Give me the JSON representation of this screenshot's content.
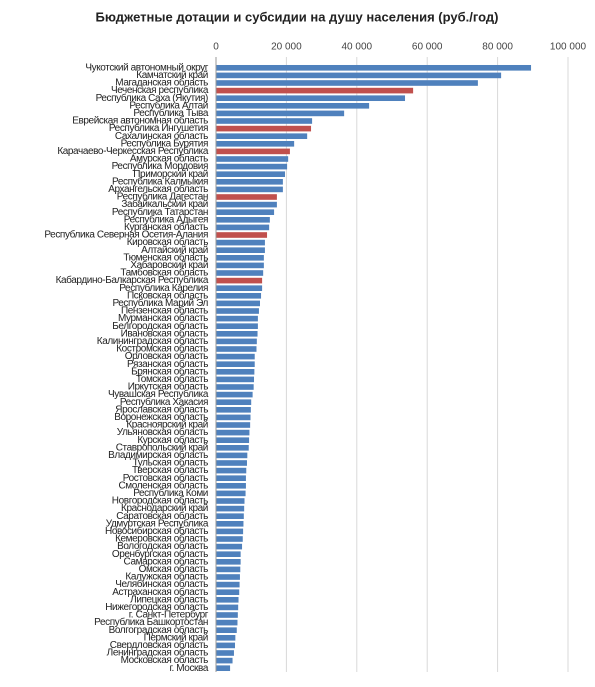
{
  "chart_data": {
    "type": "barh",
    "title": "Бюджетные дотации и субсидии на душу населения  (руб./год)",
    "categories": [
      "Чукотский автономный округ",
      "Камчатский край",
      "Магаданская область",
      "Чеченская республика",
      "Республика Саха (Якутия)",
      "Республика Алтай",
      "Республика Тыва",
      "Еврейская автономная область",
      "Республика Ингушетия",
      "Сахалинская область",
      "Республика Бурятия",
      "Карачаево-Черкесская Республика",
      "Амурская область",
      "Республика Мордовия",
      "Приморский край",
      "Республика Калмыкия",
      "Архангельская область",
      "Республика Дагестан",
      "Забайкальский край",
      "Республика Татарстан",
      "Республика Адыгея",
      "Курганская область",
      "Республика Северная Осетия-Алания",
      "Кировская область",
      "Алтайский край",
      "Тюменская область",
      "Хабаровский край",
      "Тамбовская область",
      "Кабардино-Балкарская Республика",
      "Республика Карелия",
      "Псковская область",
      "Республика Марий Эл",
      "Пензенская область",
      "Мурманская область",
      "Белгородская область",
      "Ивановская область",
      "Калининградская область",
      "Костромская область",
      "Орловская область",
      "Рязанская область",
      "Брянская область",
      "Томская область",
      "Иркутская область",
      "Чувашская Республика",
      "Республика Хакасия",
      "Ярославская область",
      "Воронежская область",
      "Красноярский край",
      "Ульяновская область",
      "Курская область",
      "Ставропольский край",
      "Владимирская область",
      "Тульская область",
      "Тверская область",
      "Ростовская область",
      "Смоленская область",
      "Республика Коми",
      "Новгородская область",
      "Краснодарский край",
      "Саратовская область",
      "Удмуртская Республика",
      "Новосибирская область",
      "Кемеровская область",
      "Вологодская область",
      "Оренбургская область",
      "Самарская область",
      "Омская область",
      "Калужская область",
      "Челябинская область",
      "Астраханская область",
      "Липецкая область",
      "Нижегородская область",
      "г. Санкт-Петербург",
      "Республика Башкортостан",
      "Волгоградская область",
      "Пермский край",
      "Свердловская область",
      "Ленинградская область",
      "Московская область",
      "г. Москва"
    ],
    "values": [
      89500,
      81000,
      74400,
      56000,
      53700,
      43500,
      36400,
      27300,
      27000,
      25900,
      22200,
      21000,
      20500,
      20200,
      19600,
      19000,
      19000,
      17300,
      17300,
      16500,
      15300,
      15100,
      14500,
      13900,
      13900,
      13600,
      13600,
      13400,
      13100,
      13100,
      12800,
      12500,
      12200,
      11900,
      11900,
      11800,
      11600,
      11500,
      11000,
      11000,
      10900,
      10800,
      10700,
      10400,
      10000,
      9900,
      9800,
      9700,
      9500,
      9400,
      9300,
      8900,
      8800,
      8600,
      8500,
      8500,
      8400,
      8100,
      8000,
      7900,
      7800,
      7700,
      7600,
      7400,
      7000,
      7000,
      6900,
      6800,
      6700,
      6600,
      6400,
      6300,
      6200,
      6100,
      5900,
      5500,
      5400,
      5100,
      4700,
      4000
    ],
    "colors": [
      "#4f81bd",
      "#4f81bd",
      "#4f81bd",
      "#c0504d",
      "#4f81bd",
      "#4f81bd",
      "#4f81bd",
      "#4f81bd",
      "#c0504d",
      "#4f81bd",
      "#4f81bd",
      "#c0504d",
      "#4f81bd",
      "#4f81bd",
      "#4f81bd",
      "#4f81bd",
      "#4f81bd",
      "#c0504d",
      "#4f81bd",
      "#4f81bd",
      "#4f81bd",
      "#4f81bd",
      "#c0504d",
      "#4f81bd",
      "#4f81bd",
      "#4f81bd",
      "#4f81bd",
      "#4f81bd",
      "#c0504d",
      "#4f81bd",
      "#4f81bd",
      "#4f81bd",
      "#4f81bd",
      "#4f81bd",
      "#4f81bd",
      "#4f81bd",
      "#4f81bd",
      "#4f81bd",
      "#4f81bd",
      "#4f81bd",
      "#4f81bd",
      "#4f81bd",
      "#4f81bd",
      "#4f81bd",
      "#4f81bd",
      "#4f81bd",
      "#4f81bd",
      "#4f81bd",
      "#4f81bd",
      "#4f81bd",
      "#4f81bd",
      "#4f81bd",
      "#4f81bd",
      "#4f81bd",
      "#4f81bd",
      "#4f81bd",
      "#4f81bd",
      "#4f81bd",
      "#4f81bd",
      "#4f81bd",
      "#4f81bd",
      "#4f81bd",
      "#4f81bd",
      "#4f81bd",
      "#4f81bd",
      "#4f81bd",
      "#4f81bd",
      "#4f81bd",
      "#4f81bd",
      "#4f81bd",
      "#4f81bd",
      "#4f81bd",
      "#4f81bd",
      "#4f81bd",
      "#4f81bd",
      "#4f81bd",
      "#4f81bd",
      "#4f81bd",
      "#4f81bd",
      "#4f81bd"
    ],
    "xlim": [
      0,
      100000
    ],
    "xticks": [
      0,
      {
        "value": 20000,
        "label": "20 000"
      },
      {
        "value": 40000,
        "label": "40 000"
      },
      {
        "value": 60000,
        "label": "60 000"
      },
      {
        "value": 80000,
        "label": "80 000"
      },
      {
        "value": 100000,
        "label": "100 000"
      }
    ],
    "grid": true
  }
}
